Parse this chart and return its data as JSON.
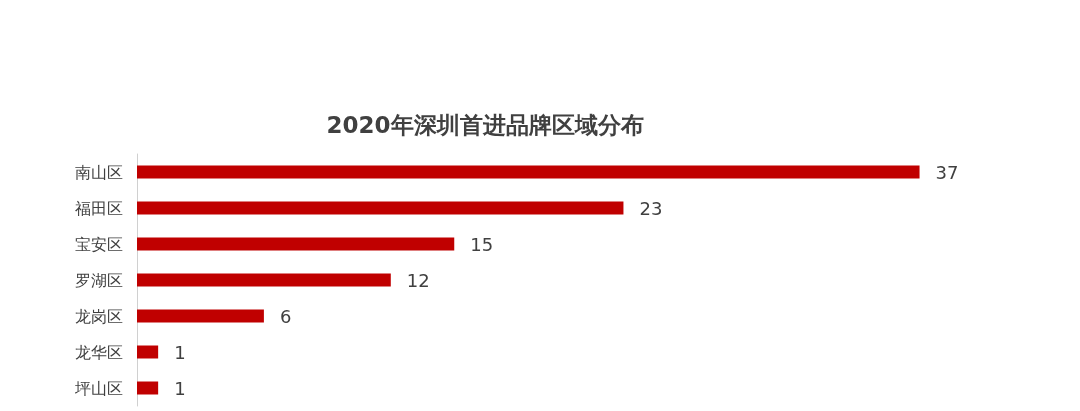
{
  "chart_data": {
    "type": "bar",
    "orientation": "horizontal",
    "title": "2020年深圳首进品牌区域分布",
    "categories": [
      "南山区",
      "福田区",
      "宝安区",
      "罗湖区",
      "龙岗区",
      "龙华区",
      "坪山区"
    ],
    "values": [
      37,
      23,
      15,
      12,
      6,
      1,
      1
    ],
    "color": "#c00000",
    "data_labels": true,
    "tick_labels": "y"
  }
}
